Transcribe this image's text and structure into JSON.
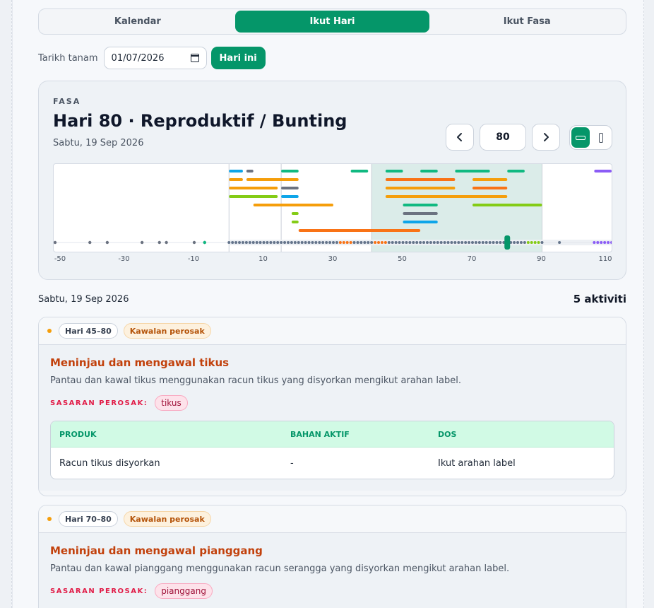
{
  "tabs": [
    {
      "label": "Kalendar",
      "active": false
    },
    {
      "label": "Ikut Hari",
      "active": true
    },
    {
      "label": "Ikut Fasa",
      "active": false
    }
  ],
  "date_picker": {
    "label": "Tarikh tanam",
    "value": "01/07/2026",
    "today_label": "Hari ini"
  },
  "phase": {
    "eyebrow": "FASA",
    "title": "Hari 80 · Reproduktif / Bunting",
    "date": "Sabtu, 19 Sep 2026",
    "day_value": "80",
    "prev_icon": "chevron-left-icon",
    "next_icon": "chevron-right-icon"
  },
  "timeline": {
    "current_day": 80,
    "highlight_range": [
      41,
      90
    ],
    "axis_ticks": [
      "-50",
      "-30",
      "-10",
      "10",
      "30",
      "50",
      "70",
      "90",
      "110"
    ],
    "bars": [
      {
        "start": 0,
        "end": 4,
        "row": 0,
        "color": "#0ea5e9"
      },
      {
        "start": 5,
        "end": 7,
        "row": 0,
        "color": "#6b7280"
      },
      {
        "start": 15,
        "end": 20,
        "row": 0,
        "color": "#10b981"
      },
      {
        "start": 35,
        "end": 40,
        "row": 0,
        "color": "#10b981"
      },
      {
        "start": 45,
        "end": 50,
        "row": 0,
        "color": "#10b981"
      },
      {
        "start": 55,
        "end": 60,
        "row": 0,
        "color": "#10b981"
      },
      {
        "start": 65,
        "end": 75,
        "row": 0,
        "color": "#10b981"
      },
      {
        "start": 80,
        "end": 85,
        "row": 0,
        "color": "#10b981"
      },
      {
        "start": 105,
        "end": 110,
        "row": 0,
        "color": "#8b5cf6"
      },
      {
        "start": 0,
        "end": 4,
        "row": 1,
        "color": "#f59e0b"
      },
      {
        "start": 5,
        "end": 20,
        "row": 1,
        "color": "#f59e0b"
      },
      {
        "start": 45,
        "end": 65,
        "row": 1,
        "color": "#f97316"
      },
      {
        "start": 70,
        "end": 80,
        "row": 1,
        "color": "#f59e0b"
      },
      {
        "start": 0,
        "end": 14,
        "row": 2,
        "color": "#f59e0b"
      },
      {
        "start": 15,
        "end": 20,
        "row": 2,
        "color": "#6b7280"
      },
      {
        "start": 45,
        "end": 65,
        "row": 2,
        "color": "#f59e0b"
      },
      {
        "start": 70,
        "end": 80,
        "row": 2,
        "color": "#f97316"
      },
      {
        "start": 0,
        "end": 14,
        "row": 3,
        "color": "#84cc16"
      },
      {
        "start": 15,
        "end": 20,
        "row": 3,
        "color": "#0ea5e9"
      },
      {
        "start": 45,
        "end": 80,
        "row": 3,
        "color": "#f59e0b"
      },
      {
        "start": 7,
        "end": 30,
        "row": 4,
        "color": "#f59e0b"
      },
      {
        "start": 50,
        "end": 60,
        "row": 4,
        "color": "#10b981"
      },
      {
        "start": 70,
        "end": 90,
        "row": 4,
        "color": "#84cc16"
      },
      {
        "start": 18,
        "end": 20,
        "row": 5,
        "color": "#84cc16"
      },
      {
        "start": 50,
        "end": 60,
        "row": 5,
        "color": "#6b7280"
      },
      {
        "start": 18,
        "end": 20,
        "row": 6,
        "color": "#84cc16"
      },
      {
        "start": 50,
        "end": 60,
        "row": 6,
        "color": "#0ea5e9"
      },
      {
        "start": 20,
        "end": 55,
        "row": 7,
        "color": "#f97316"
      }
    ]
  },
  "list": {
    "date": "Sabtu, 19 Sep 2026",
    "count_label": "5 aktiviti"
  },
  "activities": [
    {
      "day_range": "Hari 45–80",
      "category": "Kawalan perosak",
      "title": "Meninjau dan mengawal tikus",
      "description": "Pantau dan kawal tikus menggunakan racun tikus yang disyorkan mengikut arahan label.",
      "target_label": "SASARAN PEROSAK:",
      "targets": [
        "tikus"
      ],
      "table": {
        "headers": [
          "PRODUK",
          "BAHAN AKTIF",
          "DOS"
        ],
        "rows": [
          [
            "Racun tikus disyorkan",
            "-",
            "Ikut arahan label"
          ]
        ]
      }
    },
    {
      "day_range": "Hari 70–80",
      "category": "Kawalan perosak",
      "title": "Meninjau dan mengawal pianggang",
      "description": "Pantau dan kawal pianggang menggunakan racun serangga yang disyorkan mengikut arahan label.",
      "target_label": "SASARAN PEROSAK:",
      "targets": [
        "pianggang"
      ]
    }
  ]
}
